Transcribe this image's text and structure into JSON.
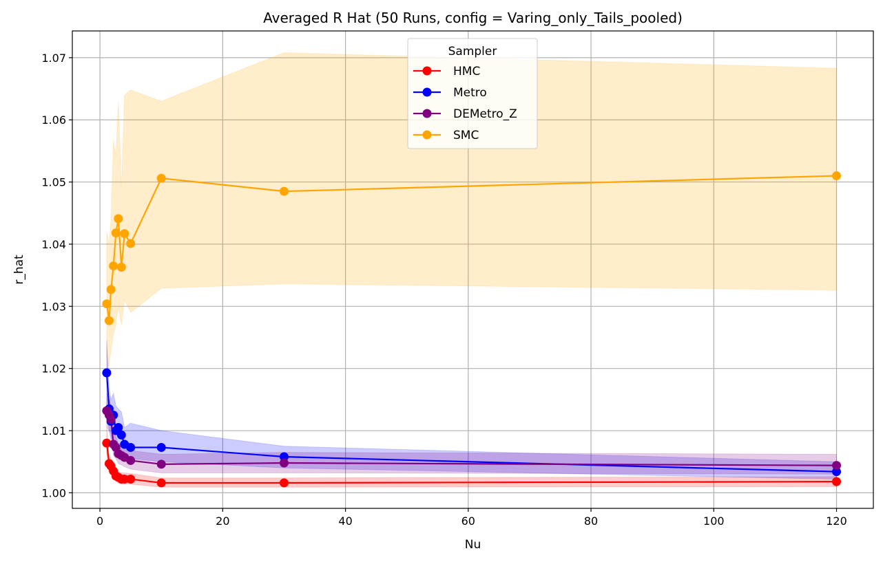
{
  "chart_data": {
    "type": "line",
    "title": "Averaged R Hat (50 Runs, config = Varing_only_Tails_pooled)",
    "xlabel": "Nu",
    "ylabel": "r_hat",
    "xlim": [
      -4.5,
      126
    ],
    "ylim": [
      0.9975,
      1.0743
    ],
    "xticks": [
      0,
      20,
      40,
      60,
      80,
      100,
      120
    ],
    "yticks": [
      1.0,
      1.01,
      1.02,
      1.03,
      1.04,
      1.05,
      1.06,
      1.07
    ],
    "xtick_labels": [
      "0",
      "20",
      "40",
      "60",
      "80",
      "100",
      "120"
    ],
    "ytick_labels": [
      "1.00",
      "1.01",
      "1.02",
      "1.03",
      "1.04",
      "1.05",
      "1.06",
      "1.07"
    ],
    "grid": true,
    "legend_title": "Sampler",
    "legend_position": "top-center",
    "x": [
      1.1,
      1.5,
      1.8,
      2.2,
      2.6,
      3.0,
      3.5,
      4.0,
      5.0,
      10,
      30,
      120
    ],
    "series": [
      {
        "name": "HMC",
        "color": "#ff0000",
        "values": [
          1.008,
          1.0047,
          1.0043,
          1.0035,
          1.0027,
          1.0025,
          1.0022,
          1.0022,
          1.0022,
          1.0016,
          1.0016,
          1.0018
        ],
        "band_low": [
          1.006,
          1.0035,
          1.0032,
          1.0025,
          1.0018,
          1.0016,
          1.0014,
          1.0014,
          1.0014,
          1.0009,
          1.0009,
          1.001
        ],
        "band_high": [
          1.0105,
          1.006,
          1.0055,
          1.0047,
          1.0038,
          1.0035,
          1.0032,
          1.0032,
          1.0031,
          1.0024,
          1.0024,
          1.0026
        ]
      },
      {
        "name": "Metro",
        "color": "#0000ff",
        "values": [
          1.0193,
          1.0135,
          1.0115,
          1.0125,
          1.01,
          1.0105,
          1.0093,
          1.0078,
          1.0073,
          1.0073,
          1.0058,
          1.0034
        ],
        "band_low": [
          1.014,
          1.01,
          1.0085,
          1.009,
          1.0075,
          1.0075,
          1.0068,
          1.006,
          1.0055,
          1.005,
          1.004,
          1.0022
        ],
        "band_high": [
          1.0245,
          1.017,
          1.015,
          1.016,
          1.014,
          1.0135,
          1.013,
          1.0105,
          1.0112,
          1.01,
          1.0075,
          1.005
        ]
      },
      {
        "name": "DEMetro_Z",
        "color": "#800080",
        "values": [
          1.0132,
          1.0125,
          1.0118,
          1.0078,
          1.0073,
          1.0063,
          1.006,
          1.0057,
          1.0052,
          1.0046,
          1.0048,
          1.0044
        ],
        "band_low": [
          1.0105,
          1.01,
          1.0095,
          1.006,
          1.0055,
          1.0047,
          1.0045,
          1.0042,
          1.0038,
          1.0032,
          1.0032,
          1.003
        ],
        "band_high": [
          1.016,
          1.015,
          1.014,
          1.0098,
          1.009,
          1.008,
          1.0076,
          1.0073,
          1.0068,
          1.0062,
          1.0065,
          1.0062
        ]
      },
      {
        "name": "SMC",
        "color": "#ffa500",
        "values": [
          1.0304,
          1.0277,
          1.0327,
          1.0365,
          1.0418,
          1.0441,
          1.0363,
          1.0417,
          1.0401,
          1.0506,
          1.0485,
          1.051
        ],
        "band_low": [
          1.02,
          1.0205,
          1.023,
          1.0255,
          1.027,
          1.03,
          1.027,
          1.031,
          1.029,
          1.0329,
          1.0336,
          1.0326
        ],
        "band_high": [
          1.042,
          1.04,
          1.044,
          1.0568,
          1.054,
          1.063,
          1.049,
          1.064,
          1.0648,
          1.063,
          1.0708,
          1.0683
        ]
      }
    ]
  }
}
